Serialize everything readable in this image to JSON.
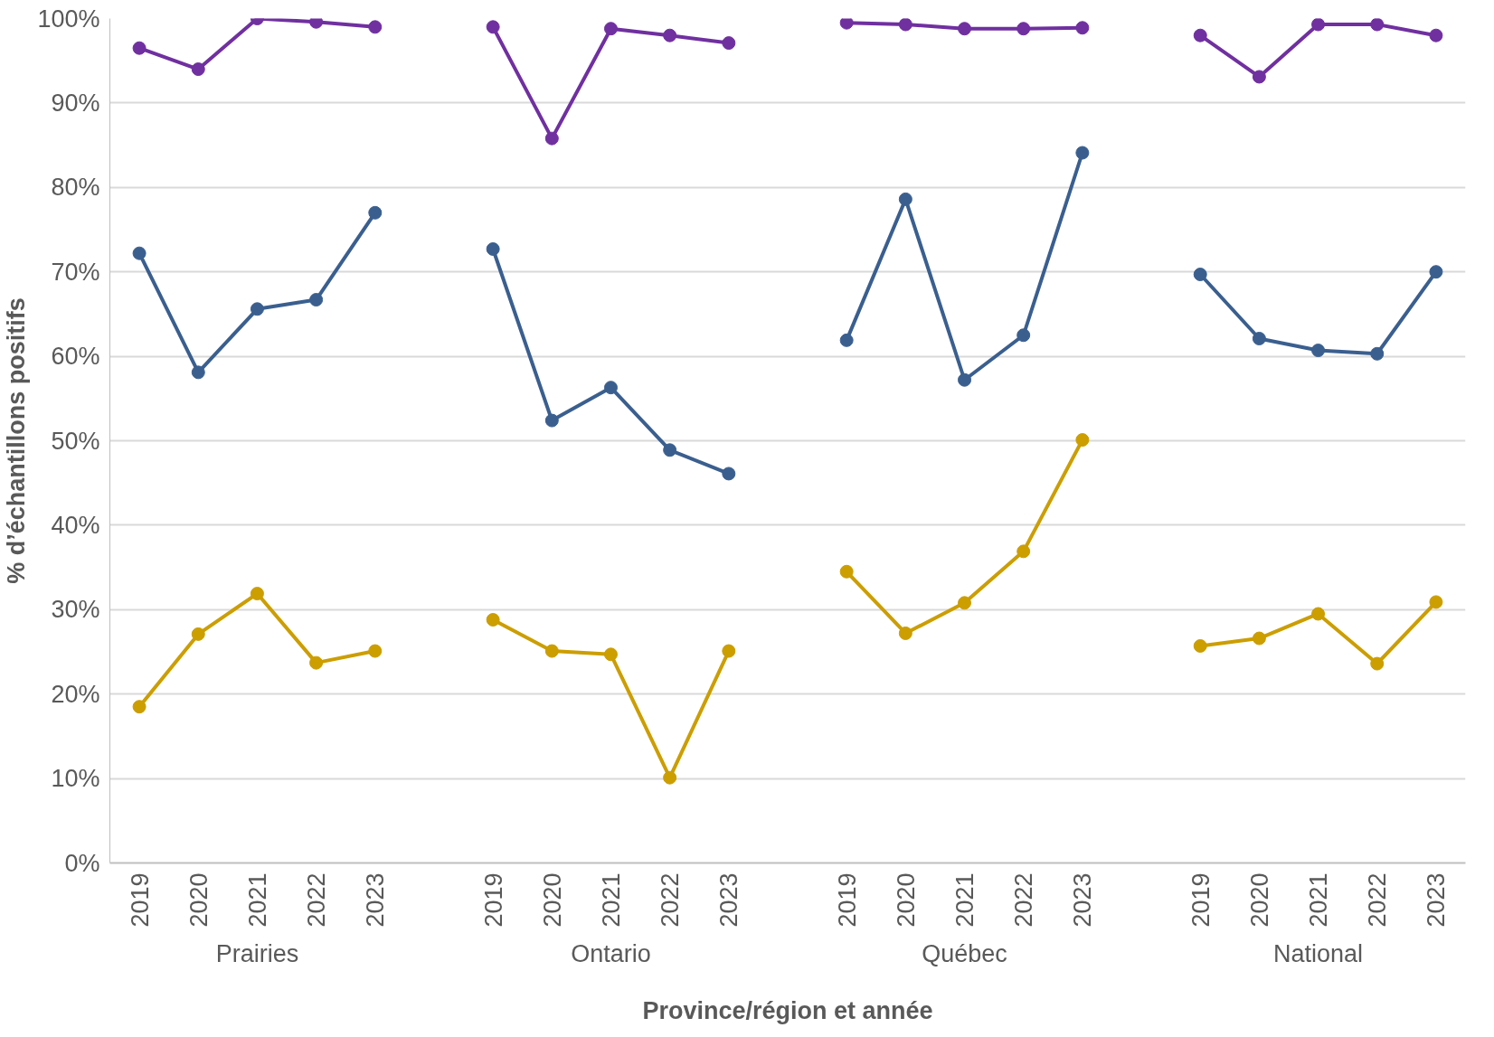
{
  "chart_data": {
    "type": "line",
    "xlabel": "Province/région et année",
    "ylabel": "% d’échantillons positifs",
    "categories": [
      "2019",
      "2020",
      "2021",
      "2022",
      "2023",
      null,
      "2019",
      "2020",
      "2021",
      "2022",
      "2023",
      null,
      "2019",
      "2020",
      "2021",
      "2022",
      "2023",
      null,
      "2019",
      "2020",
      "2021",
      "2022",
      "2023"
    ],
    "annotations": [
      "Prairies",
      "Ontario",
      "Québec",
      "National"
    ],
    "series": [
      {
        "color": "#7030a0",
        "values": [
          96.5,
          94.0,
          100,
          99.6,
          99.0,
          null,
          99.0,
          85.8,
          98.8,
          98.0,
          97.1,
          null,
          99.5,
          99.3,
          98.8,
          98.8,
          98.9,
          null,
          98.0,
          93.1,
          99.3,
          99.3,
          98.0
        ]
      },
      {
        "color": "#3a5f8f",
        "values": [
          72.2,
          58.1,
          65.6,
          66.7,
          77.0,
          null,
          72.7,
          52.4,
          56.3,
          48.9,
          46.1,
          null,
          61.9,
          78.6,
          57.2,
          62.5,
          84.1,
          null,
          69.7,
          62.1,
          60.7,
          60.3,
          70.0
        ]
      },
      {
        "color": "#cc9e00",
        "values": [
          18.5,
          27.1,
          31.9,
          23.7,
          25.1,
          null,
          28.8,
          25.1,
          24.7,
          10.1,
          25.1,
          null,
          34.5,
          27.2,
          30.8,
          36.9,
          50.1,
          null,
          25.7,
          26.6,
          29.5,
          23.6,
          30.9
        ]
      }
    ],
    "ylim": [
      0,
      100
    ],
    "yticks": [
      {
        "value": 0,
        "label": "0%"
      },
      {
        "value": 10,
        "label": "10%"
      },
      {
        "value": 20,
        "label": "20%"
      },
      {
        "value": 30,
        "label": "30%"
      },
      {
        "value": 40,
        "label": "40%"
      },
      {
        "value": 50,
        "label": "50%"
      },
      {
        "value": 60,
        "label": "60%"
      },
      {
        "value": 70,
        "label": "70%"
      },
      {
        "value": 80,
        "label": "80%"
      },
      {
        "value": 90,
        "label": "90%"
      },
      {
        "value": 100,
        "label": "100%"
      }
    ],
    "grid": "y",
    "marker": "circle",
    "line_style": "solid"
  }
}
